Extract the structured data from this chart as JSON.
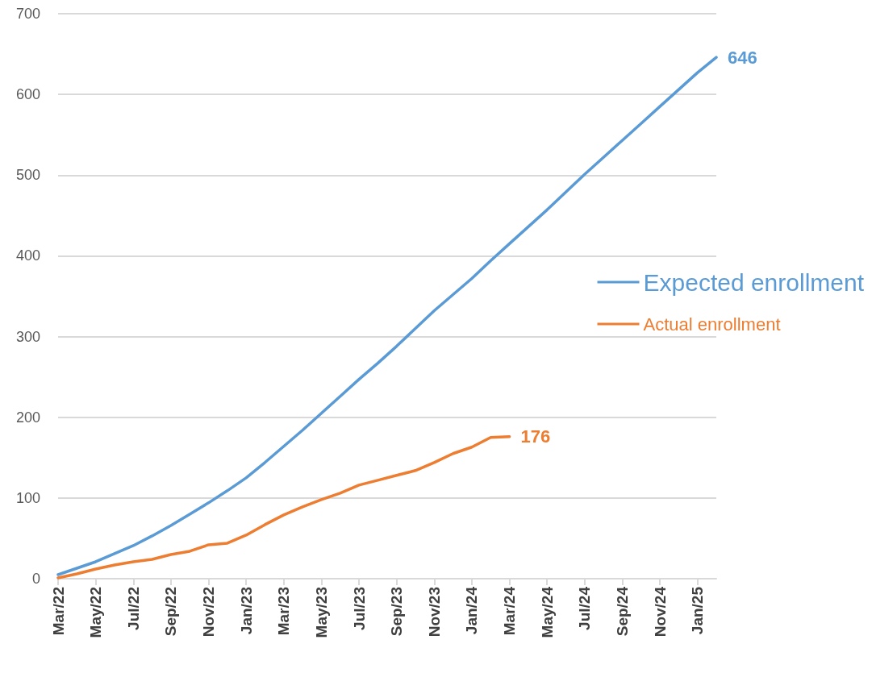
{
  "chart_data": {
    "type": "line",
    "categories": [
      "Mar/22",
      null,
      "May/22",
      null,
      "Jul/22",
      null,
      "Sep/22",
      null,
      "Nov/22",
      null,
      "Jan/23",
      null,
      "Mar/23",
      null,
      "May/23",
      null,
      "Jul/23",
      null,
      "Sep/23",
      null,
      "Nov/23",
      null,
      "Jan/24",
      null,
      "Mar/24",
      null,
      "May/24",
      null,
      "Jul/24",
      null,
      "Sep/24",
      null,
      "Nov/24",
      null,
      "Jan/25",
      null
    ],
    "series": [
      {
        "name": "Expected enrollment",
        "color": "#5b9bd5",
        "values": [
          5,
          13,
          21,
          31,
          41,
          53,
          66,
          80,
          94,
          109,
          125,
          144,
          164,
          184,
          205,
          226,
          247,
          267,
          288,
          310,
          332,
          352,
          372,
          394,
          415,
          436,
          457,
          479,
          501,
          522,
          543,
          564,
          585,
          606,
          627,
          646
        ],
        "value_labels": [
          null,
          null,
          null,
          null,
          null,
          null,
          null,
          null,
          null,
          null,
          null,
          null,
          null,
          null,
          null,
          null,
          null,
          null,
          null,
          null,
          null,
          null,
          null,
          null,
          null,
          null,
          null,
          null,
          null,
          null,
          null,
          null,
          null,
          null,
          null,
          "646"
        ]
      },
      {
        "name": "Actual enrollment",
        "color": "#ed7d31",
        "values": [
          1,
          6,
          12,
          17,
          21,
          24,
          30,
          34,
          42,
          44,
          54,
          67,
          79,
          89,
          98,
          106,
          116,
          122,
          128,
          134,
          144,
          155,
          163,
          175,
          176,
          null,
          null,
          null,
          null,
          null,
          null,
          null,
          null,
          null,
          null,
          null
        ],
        "value_labels": [
          null,
          null,
          null,
          null,
          null,
          null,
          null,
          null,
          null,
          null,
          null,
          null,
          null,
          null,
          null,
          null,
          null,
          null,
          null,
          null,
          null,
          null,
          null,
          null,
          "176",
          null,
          null,
          null,
          null,
          null,
          null,
          null,
          null,
          null,
          null,
          null
        ]
      }
    ],
    "ylim": [
      0,
      700
    ],
    "yticks": [
      0,
      100,
      200,
      300,
      400,
      500,
      600,
      700
    ],
    "grid": "y",
    "legend": "right",
    "marker": "none",
    "line_style": "solid"
  }
}
